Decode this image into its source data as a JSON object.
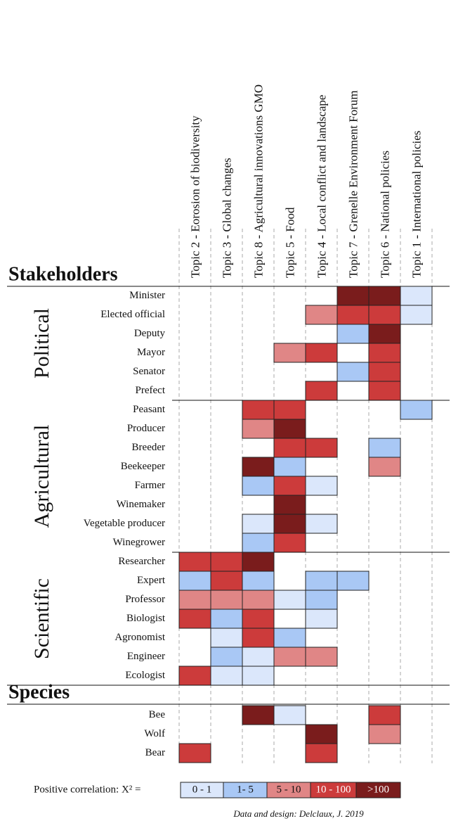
{
  "chart_data": {
    "type": "heatmap",
    "columns": [
      "Topic 2 - Eorosion of biodiversity",
      "Topic 3 - Global changes",
      "Topic 8 - Agricultural innovations GMO",
      "Topic 5 - Food",
      "Topic 4 - Local conflict and landscape",
      "Topic 7 - Grenelle Environment Forum",
      "Topic 6 - National policies",
      "Topic 1 - International policies"
    ],
    "sections": [
      {
        "title": "Stakeholders",
        "groups": [
          {
            "name": "Political",
            "rows": [
              {
                "label": "Minister",
                "cells": [
                  null,
                  null,
                  null,
                  null,
                  null,
                  ">100",
                  ">100",
                  "0 - 1"
                ]
              },
              {
                "label": "Elected official",
                "cells": [
                  null,
                  null,
                  null,
                  null,
                  "5 - 10",
                  "10 - 100",
                  "10 - 100",
                  "0 - 1"
                ]
              },
              {
                "label": "Deputy",
                "cells": [
                  null,
                  null,
                  null,
                  null,
                  null,
                  "1- 5",
                  ">100",
                  null
                ]
              },
              {
                "label": "Mayor",
                "cells": [
                  null,
                  null,
                  null,
                  "5 - 10",
                  "10 - 100",
                  null,
                  "10 - 100",
                  null
                ]
              },
              {
                "label": "Senator",
                "cells": [
                  null,
                  null,
                  null,
                  null,
                  null,
                  "1- 5",
                  "10 - 100",
                  null
                ]
              },
              {
                "label": "Prefect",
                "cells": [
                  null,
                  null,
                  null,
                  null,
                  "10 - 100",
                  null,
                  "10 - 100",
                  null
                ]
              }
            ]
          },
          {
            "name": "Agricultural",
            "rows": [
              {
                "label": "Peasant",
                "cells": [
                  null,
                  null,
                  "10 - 100",
                  "10 - 100",
                  null,
                  null,
                  null,
                  "1- 5"
                ]
              },
              {
                "label": "Producer",
                "cells": [
                  null,
                  null,
                  "5 - 10",
                  ">100",
                  null,
                  null,
                  null,
                  null
                ]
              },
              {
                "label": "Breeder",
                "cells": [
                  null,
                  null,
                  null,
                  "10 - 100",
                  "10 - 100",
                  null,
                  "1- 5",
                  null
                ]
              },
              {
                "label": "Beekeeper",
                "cells": [
                  null,
                  null,
                  ">100",
                  "1- 5",
                  null,
                  null,
                  "5 - 10",
                  null
                ]
              },
              {
                "label": "Farmer",
                "cells": [
                  null,
                  null,
                  "1- 5",
                  "10 - 100",
                  "0 - 1",
                  null,
                  null,
                  null
                ]
              },
              {
                "label": "Winemaker",
                "cells": [
                  null,
                  null,
                  null,
                  ">100",
                  null,
                  null,
                  null,
                  null
                ]
              },
              {
                "label": "Vegetable producer",
                "cells": [
                  null,
                  null,
                  "0 - 1",
                  ">100",
                  "0 - 1",
                  null,
                  null,
                  null
                ]
              },
              {
                "label": "Winegrower",
                "cells": [
                  null,
                  null,
                  "1- 5",
                  "10 - 100",
                  null,
                  null,
                  null,
                  null
                ]
              }
            ]
          },
          {
            "name": "Scientific",
            "rows": [
              {
                "label": "Researcher",
                "cells": [
                  "10 - 100",
                  "10 - 100",
                  ">100",
                  null,
                  null,
                  null,
                  null,
                  null
                ]
              },
              {
                "label": "Expert",
                "cells": [
                  "1- 5",
                  "10 - 100",
                  "1- 5",
                  null,
                  "1- 5",
                  "1- 5",
                  null,
                  null
                ]
              },
              {
                "label": "Professor",
                "cells": [
                  "5 - 10",
                  "5 - 10",
                  "5 - 10",
                  "0 - 1",
                  "1- 5",
                  null,
                  null,
                  null
                ]
              },
              {
                "label": "Biologist",
                "cells": [
                  "10 - 100",
                  "1- 5",
                  "10 - 100",
                  null,
                  "0 - 1",
                  null,
                  null,
                  null
                ]
              },
              {
                "label": "Agronomist",
                "cells": [
                  null,
                  "0 - 1",
                  "10 - 100",
                  "1- 5",
                  null,
                  null,
                  null,
                  null
                ]
              },
              {
                "label": "Engineer",
                "cells": [
                  null,
                  "1- 5",
                  "0 - 1",
                  "5 - 10",
                  "5 - 10",
                  null,
                  null,
                  null
                ]
              },
              {
                "label": "Ecologist",
                "cells": [
                  "10 - 100",
                  "0 - 1",
                  "0 - 1",
                  null,
                  null,
                  null,
                  null,
                  null
                ]
              }
            ]
          }
        ]
      },
      {
        "title": "Species",
        "rows": [
          {
            "label": "Bee",
            "cells": [
              null,
              null,
              ">100",
              "0 - 1",
              null,
              null,
              "10 - 100",
              null
            ]
          },
          {
            "label": "Wolf",
            "cells": [
              null,
              null,
              null,
              null,
              ">100",
              null,
              "5 - 10",
              null
            ]
          },
          {
            "label": "Bear",
            "cells": [
              "10 - 100",
              null,
              null,
              null,
              "10 - 100",
              null,
              null,
              null
            ]
          }
        ]
      }
    ],
    "legend": {
      "title": "Positive correlation: X² =",
      "classes": [
        {
          "label": "0 - 1",
          "color": "#dbe7fb"
        },
        {
          "label": "1- 5",
          "color": "#a9c8f5"
        },
        {
          "label": "5 - 10",
          "color": "#e08686"
        },
        {
          "label": "10 - 100",
          "color": "#cc3b3b"
        },
        {
          "label": ">100",
          "color": "#7a1c1c"
        }
      ]
    },
    "source": "Data and design: Delclaux, J. 2019"
  }
}
